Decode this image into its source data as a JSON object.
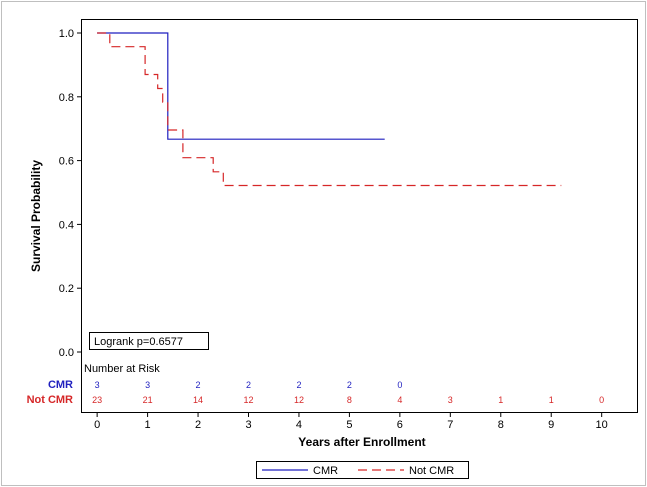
{
  "chart_data": {
    "type": "line",
    "subtype": "kaplan-meier",
    "xlabel": "Years after Enrollment",
    "ylabel": "Survival Probability",
    "xlim": [
      -0.3,
      10.7
    ],
    "ylim": [
      0.0,
      1.0
    ],
    "x_ticks": [
      "0",
      "1",
      "2",
      "3",
      "4",
      "5",
      "6",
      "7",
      "8",
      "9",
      "10"
    ],
    "y_ticks": [
      "0.0",
      "0.2",
      "0.4",
      "0.6",
      "0.8",
      "1.0"
    ],
    "grid": false,
    "annotation": "Logrank p=0.6577",
    "risk_table": {
      "title": "Number at Risk",
      "times": [
        0,
        1,
        2,
        3,
        4,
        5,
        6,
        7,
        8,
        9,
        10
      ],
      "rows": [
        {
          "label": "CMR",
          "color": "#1f1fbf",
          "counts": [
            "3",
            "3",
            "2",
            "2",
            "2",
            "2",
            "0",
            "",
            "",
            "",
            ""
          ]
        },
        {
          "label": "Not CMR",
          "color": "#d62728",
          "counts": [
            "23",
            "21",
            "14",
            "12",
            "12",
            "8",
            "4",
            "3",
            "1",
            "1",
            "0"
          ]
        }
      ]
    },
    "legend_position": "bottom-center",
    "series": [
      {
        "name": "CMR",
        "color": "#1f1fbf",
        "style": "solid",
        "points": [
          [
            0,
            1.0
          ],
          [
            1.4,
            1.0
          ],
          [
            1.4,
            0.667
          ],
          [
            5.7,
            0.667
          ]
        ]
      },
      {
        "name": "Not CMR",
        "color": "#d62728",
        "style": "dashed",
        "points": [
          [
            0,
            1.0
          ],
          [
            0.25,
            1.0
          ],
          [
            0.25,
            0.957
          ],
          [
            0.95,
            0.957
          ],
          [
            0.95,
            0.87
          ],
          [
            1.2,
            0.87
          ],
          [
            1.2,
            0.826
          ],
          [
            1.3,
            0.826
          ],
          [
            1.3,
            0.783
          ],
          [
            1.4,
            0.783
          ],
          [
            1.4,
            0.696
          ],
          [
            1.7,
            0.696
          ],
          [
            1.7,
            0.609
          ],
          [
            2.3,
            0.609
          ],
          [
            2.3,
            0.565
          ],
          [
            2.5,
            0.565
          ],
          [
            2.5,
            0.522
          ],
          [
            9.2,
            0.522
          ]
        ]
      }
    ]
  }
}
